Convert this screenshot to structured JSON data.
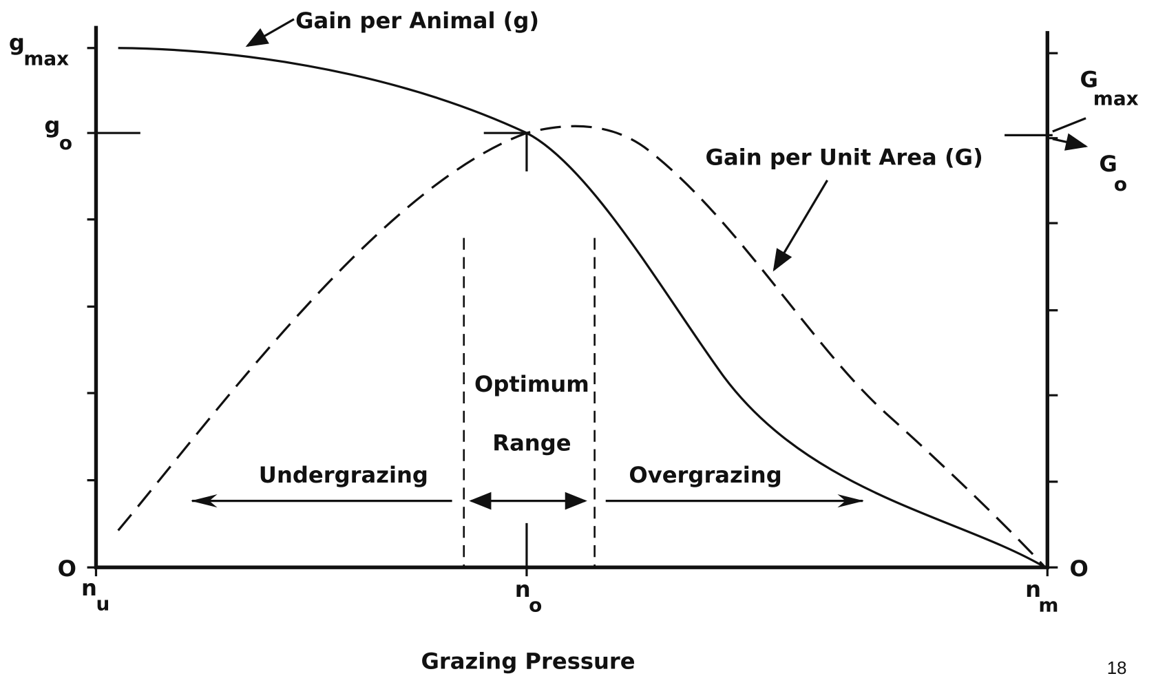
{
  "title_axis": "Grazing Pressure",
  "page_number": "18",
  "curves": {
    "animal": "Gain per Animal (g)",
    "area": "Gain per Unit Area (G)"
  },
  "left_axis": {
    "g_max": {
      "symbol": "g",
      "sub": "max"
    },
    "g_o": {
      "symbol": "g",
      "sub": "o"
    },
    "zero": "O"
  },
  "right_axis": {
    "G_max": {
      "symbol": "G",
      "sub": "max"
    },
    "G_o": {
      "symbol": "G",
      "sub": "o"
    },
    "zero": "O"
  },
  "x_axis": {
    "n_u": {
      "symbol": "n",
      "sub": "u"
    },
    "n_o": {
      "symbol": "n",
      "sub": "o"
    },
    "n_m": {
      "symbol": "n",
      "sub": "m"
    }
  },
  "regions": {
    "optimum": "Optimum",
    "range": "Range",
    "under": "Undergrazing",
    "over": "Overgrazing"
  }
}
